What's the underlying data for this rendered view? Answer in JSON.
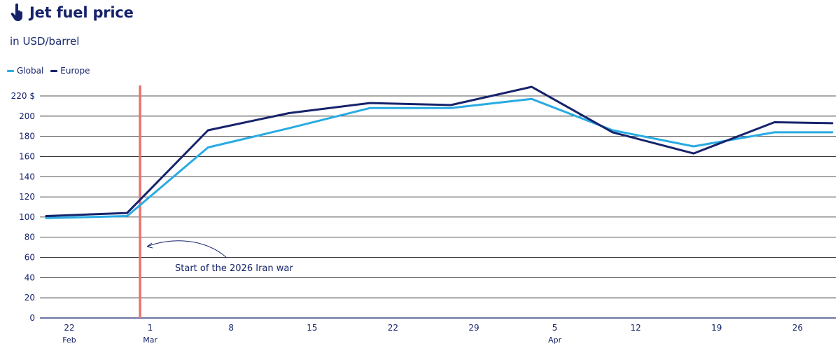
{
  "header": {
    "title": "Jet fuel price",
    "icon": "pointing-hand-icon"
  },
  "subtitle": "in USD/barrel",
  "legend": [
    {
      "label": "Global",
      "color": "#29abe2"
    },
    {
      "label": "Europe",
      "color": "#16236b"
    }
  ],
  "annotation": {
    "text": "Start of the 2026 Iran war",
    "marker_color": "#e8736f"
  },
  "chart_data": {
    "type": "line",
    "y_tick_labels": [
      "220 $",
      "200",
      "180",
      "160",
      "140",
      "120",
      "100",
      "80",
      "60",
      "40",
      "20",
      "0"
    ],
    "y_ticks": [
      220,
      200,
      180,
      160,
      140,
      120,
      100,
      80,
      60,
      40,
      20,
      0
    ],
    "ylim": [
      0,
      220
    ],
    "x_tick_labels": [
      {
        "day": "22",
        "month": "Feb"
      },
      {
        "day": "1",
        "month": "Mar"
      },
      {
        "day": "8",
        "month": ""
      },
      {
        "day": "15",
        "month": ""
      },
      {
        "day": "22",
        "month": ""
      },
      {
        "day": "29",
        "month": ""
      },
      {
        "day": "5",
        "month": "Apr"
      },
      {
        "day": "12",
        "month": ""
      },
      {
        "day": "19",
        "month": ""
      },
      {
        "day": "26",
        "month": ""
      }
    ],
    "series": [
      {
        "name": "Global",
        "color": "#29abe2",
        "points": [
          [
            "2026-02-20",
            99
          ],
          [
            "2026-02-27",
            101
          ],
          [
            "2026-03-06",
            169
          ],
          [
            "2026-03-13",
            188
          ],
          [
            "2026-03-20",
            208
          ],
          [
            "2026-03-27",
            208
          ],
          [
            "2026-04-03",
            217
          ],
          [
            "2026-04-10",
            186
          ],
          [
            "2026-04-17",
            170
          ],
          [
            "2026-04-24",
            184
          ],
          [
            "2026-04-29",
            184
          ]
        ]
      },
      {
        "name": "Europe",
        "color": "#16236b",
        "points": [
          [
            "2026-02-20",
            101
          ],
          [
            "2026-02-27",
            104
          ],
          [
            "2026-03-06",
            186
          ],
          [
            "2026-03-13",
            203
          ],
          [
            "2026-03-20",
            213
          ],
          [
            "2026-03-27",
            211
          ],
          [
            "2026-04-03",
            229
          ],
          [
            "2026-04-10",
            184
          ],
          [
            "2026-04-17",
            163
          ],
          [
            "2026-04-24",
            194
          ],
          [
            "2026-04-29",
            193
          ]
        ]
      }
    ],
    "event_marker_date": "2026-02-28",
    "grid": true,
    "legend_position": "top-left"
  }
}
